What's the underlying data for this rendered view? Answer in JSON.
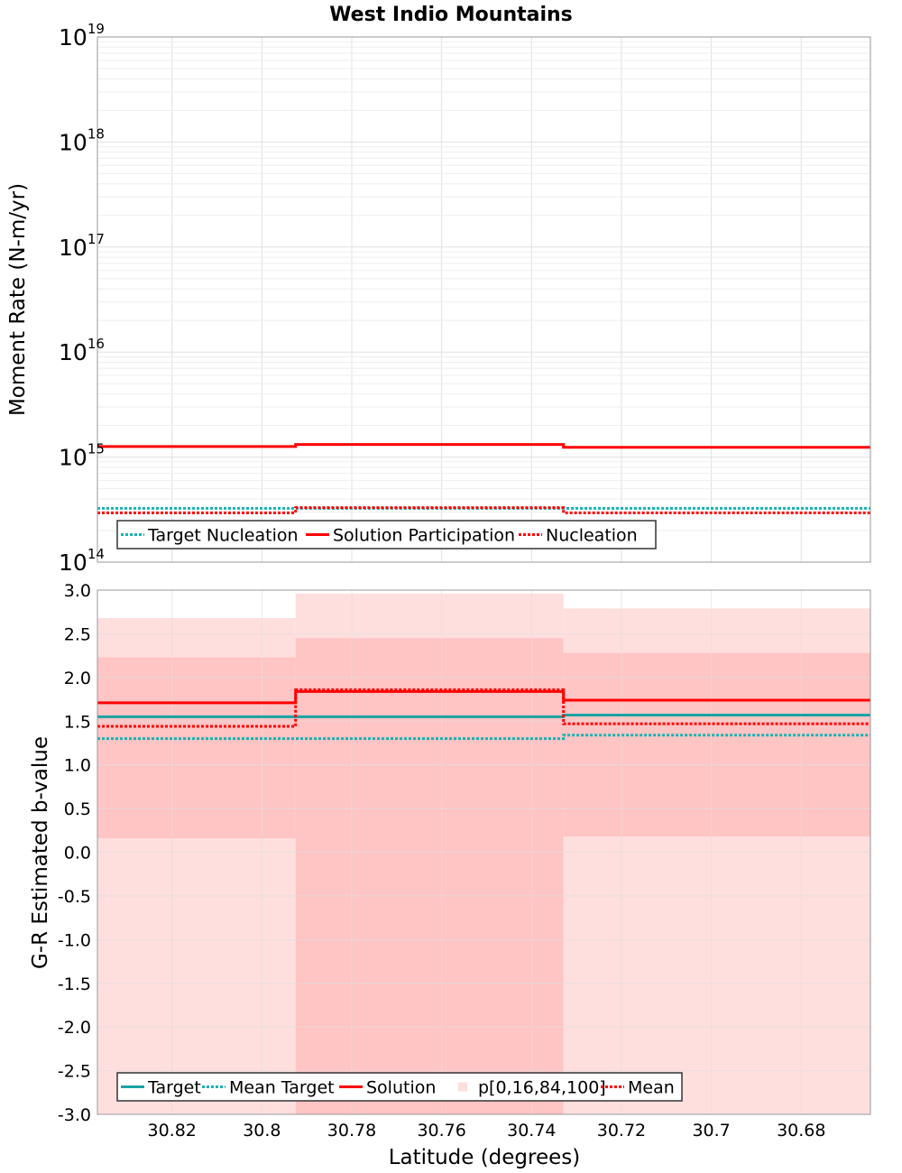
{
  "title": "West Indio Mountains",
  "colors": {
    "target": "#1aa3a3",
    "mean_target": "#19b3b3",
    "solution": "#ff0000",
    "band_outer": "#ffdede",
    "band_inner": "#ffc4c4"
  },
  "chart_data": [
    {
      "type": "line",
      "name": "moment-rate",
      "ylabel": "Moment Rate (N-m/yr)",
      "yscale": "log",
      "ylim": [
        100000000000000.0,
        1e+19
      ],
      "xlim": [
        30.8366,
        30.6646
      ],
      "x_edges": [
        30.8366,
        30.7925,
        30.7329,
        30.6646
      ],
      "y_ticks": [
        {
          "base": "10",
          "exp": "14",
          "value": 100000000000000.0
        },
        {
          "base": "10",
          "exp": "15",
          "value": 1000000000000000.0
        },
        {
          "base": "10",
          "exp": "16",
          "value": 1e+16
        },
        {
          "base": "10",
          "exp": "17",
          "value": 1e+17
        },
        {
          "base": "10",
          "exp": "18",
          "value": 1e+18
        },
        {
          "base": "10",
          "exp": "19",
          "value": 1e+19
        }
      ],
      "series": [
        {
          "name": "Target Nucleation",
          "style": "dotted",
          "color": "#19b3b3",
          "values": [
            325000000000000.0,
            325000000000000.0,
            325000000000000.0
          ]
        },
        {
          "name": "Solution Participation",
          "style": "solid",
          "color": "#ff0000",
          "values": [
            1260000000000000.0,
            1320000000000000.0,
            1240000000000000.0
          ]
        },
        {
          "name": "Nucleation",
          "style": "dotted",
          "color": "#ff0000",
          "values": [
            295000000000000.0,
            330000000000000.0,
            295000000000000.0
          ]
        }
      ],
      "legend": {
        "position": "bottom-left",
        "items": [
          {
            "label": "Target Nucleation",
            "style": "dotted",
            "color": "#19b3b3"
          },
          {
            "label": "Solution Participation",
            "style": "solid",
            "color": "#ff0000"
          },
          {
            "label": "Nucleation",
            "style": "dotted",
            "color": "#ff0000"
          }
        ]
      }
    },
    {
      "type": "line",
      "name": "b-value",
      "ylabel": "G-R Estimated b-value",
      "xlabel": "Latitude (degrees)",
      "ylim": [
        -3.0,
        3.0
      ],
      "xlim": [
        30.8366,
        30.6646
      ],
      "x_edges": [
        30.8366,
        30.7925,
        30.7329,
        30.6646
      ],
      "y_ticks": [
        "3.0",
        "2.5",
        "2.0",
        "1.5",
        "1.0",
        "0.5",
        "0.0",
        "-0.5",
        "-1.0",
        "-1.5",
        "-2.0",
        "-2.5",
        "-3.0"
      ],
      "x_ticks": [
        "30.82",
        "30.8",
        "30.78",
        "30.76",
        "30.74",
        "30.72",
        "30.7",
        "30.68"
      ],
      "bands": {
        "p0": [
          -3.0,
          -3.0,
          -3.0
        ],
        "p16": [
          0.16,
          -3.0,
          0.18
        ],
        "p84": [
          2.23,
          2.45,
          2.28
        ],
        "p100": [
          2.68,
          2.96,
          2.79
        ]
      },
      "series": [
        {
          "name": "Target",
          "style": "solid",
          "color": "#1aa3a3",
          "values": [
            1.55,
            1.55,
            1.57
          ]
        },
        {
          "name": "Mean Target",
          "style": "dotted",
          "color": "#19b3b3",
          "values": [
            1.3,
            1.3,
            1.34
          ]
        },
        {
          "name": "Solution",
          "style": "solid",
          "color": "#ff0000",
          "values": [
            1.71,
            1.84,
            1.74
          ]
        },
        {
          "name": "Mean",
          "style": "dotted",
          "color": "#ff0000",
          "values": [
            1.44,
            1.86,
            1.47
          ]
        }
      ],
      "legend": {
        "position": "bottom-left",
        "items": [
          {
            "label": "Target",
            "style": "solid",
            "color": "#1aa3a3"
          },
          {
            "label": "Mean Target",
            "style": "dotted",
            "color": "#19b3b3"
          },
          {
            "label": "Solution",
            "style": "solid",
            "color": "#ff0000"
          },
          {
            "label": "p[0,16,84,100]",
            "style": "box",
            "color": "#ffdede"
          },
          {
            "label": "Mean",
            "style": "dotted",
            "color": "#ff0000"
          }
        ]
      }
    }
  ]
}
